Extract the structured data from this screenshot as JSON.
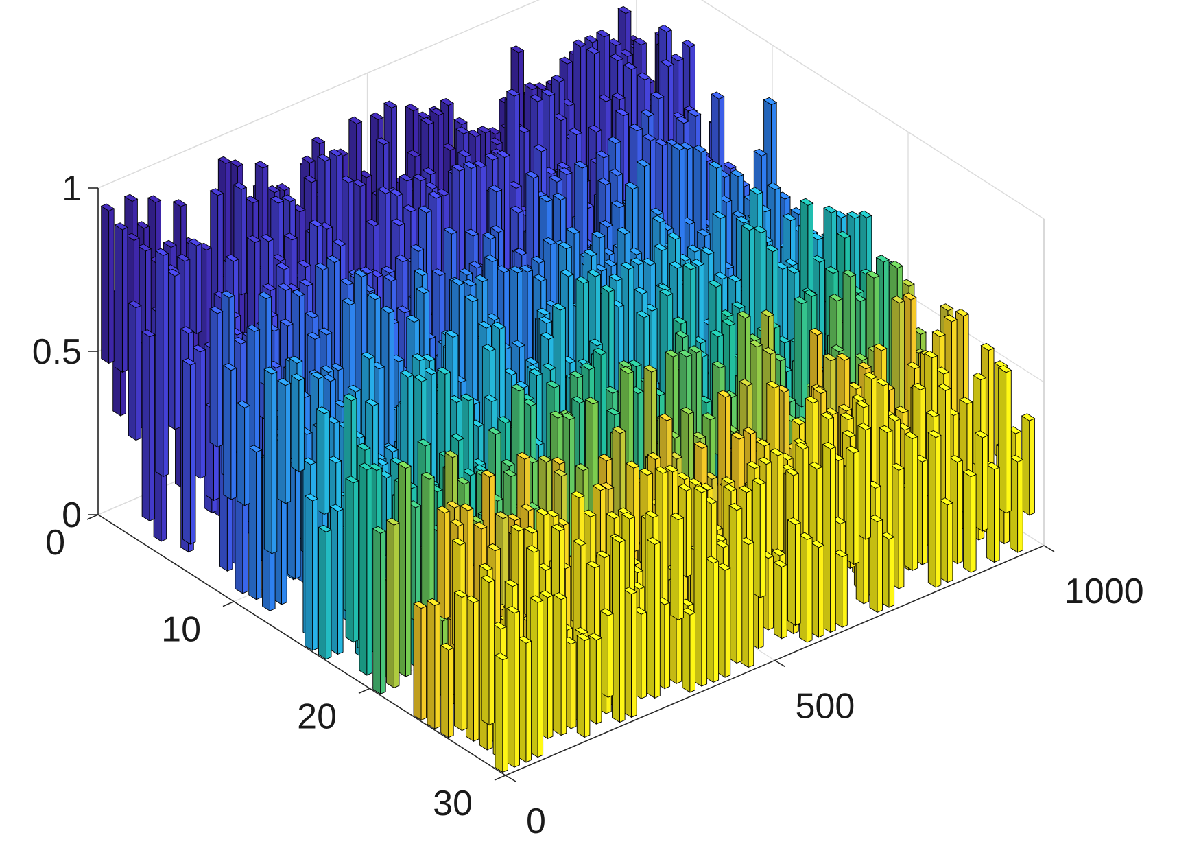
{
  "chart_data": {
    "type": "bar3d",
    "title": "",
    "xlabel": "",
    "ylabel": "",
    "zlabel": "",
    "x_axis": {
      "range": [
        0,
        30
      ],
      "ticks": [
        0,
        10,
        20,
        30
      ],
      "tick_labels": [
        "0",
        "10",
        "20",
        "30"
      ]
    },
    "y_axis": {
      "range": [
        0,
        1000
      ],
      "ticks": [
        0,
        500,
        1000
      ],
      "tick_labels": [
        "0",
        "500",
        "1000"
      ]
    },
    "z_axis": {
      "range": [
        0,
        1
      ],
      "ticks": [
        0,
        0.5,
        1
      ],
      "tick_labels": [
        "0",
        "0.5",
        "1"
      ]
    },
    "grid": true,
    "colormap": "parula",
    "colors": {
      "low": "#3e26a8",
      "mid_low": "#2da6e8",
      "mid": "#20c0a0",
      "high": "#f5d423",
      "top": "#fffa14"
    },
    "series": [
      {
        "x_range": [
          0,
          5
        ],
        "y_range": [
          0,
          1000
        ],
        "z_typical": [
          0.55,
          0.9
        ],
        "color": "#3e26a8"
      },
      {
        "x_range": [
          5,
          12
        ],
        "y_range": [
          0,
          1000
        ],
        "z_typical": [
          0.4,
          0.85
        ],
        "color": "#2f7bf0"
      },
      {
        "x_range": [
          12,
          18
        ],
        "y_range": [
          0,
          1000
        ],
        "z_typical": [
          0.35,
          0.8
        ],
        "color": "#2bb6e8"
      },
      {
        "x_range": [
          18,
          22
        ],
        "y_range": [
          0,
          1000
        ],
        "z_typical": [
          0.3,
          0.7
        ],
        "color": "#20c0a0"
      },
      {
        "x_range": [
          22,
          30
        ],
        "y_range": [
          0,
          1000
        ],
        "z_typical": [
          0.2,
          0.6
        ],
        "color": "#f9e51c"
      }
    ]
  }
}
